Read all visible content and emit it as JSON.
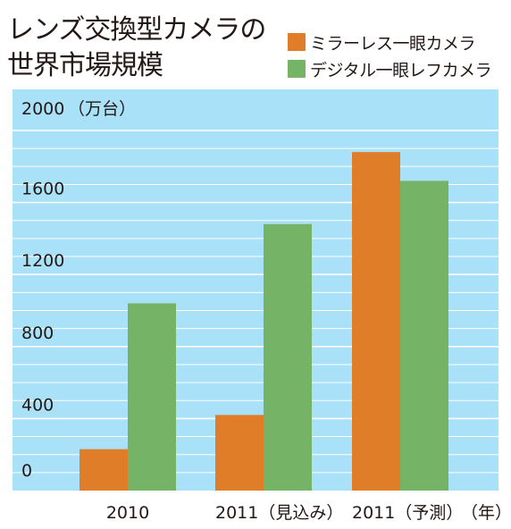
{
  "chart_data": {
    "type": "bar",
    "title_lines": [
      "レンズ交換型カメラの",
      "世界市場規模"
    ],
    "y_unit_label": "（万台）",
    "x_unit_label": "（年）",
    "categories": [
      "2010",
      "2011（見込み）",
      "2011（予測）"
    ],
    "series": [
      {
        "name": "ミラーレス一眼カメラ",
        "color": "#e07d28",
        "values": [
          230,
          420,
          1880
        ]
      },
      {
        "name": "デジタル一眼レフカメラ",
        "color": "#75b466",
        "values": [
          1040,
          1480,
          1720
        ]
      }
    ],
    "y_ticks": [
      0,
      400,
      800,
      1200,
      1600,
      2000
    ],
    "ylim": [
      0,
      2000
    ],
    "grid": true,
    "legend_position": "top-right",
    "background_color": "#a8e1f8",
    "grid_color": "#ffffff"
  }
}
